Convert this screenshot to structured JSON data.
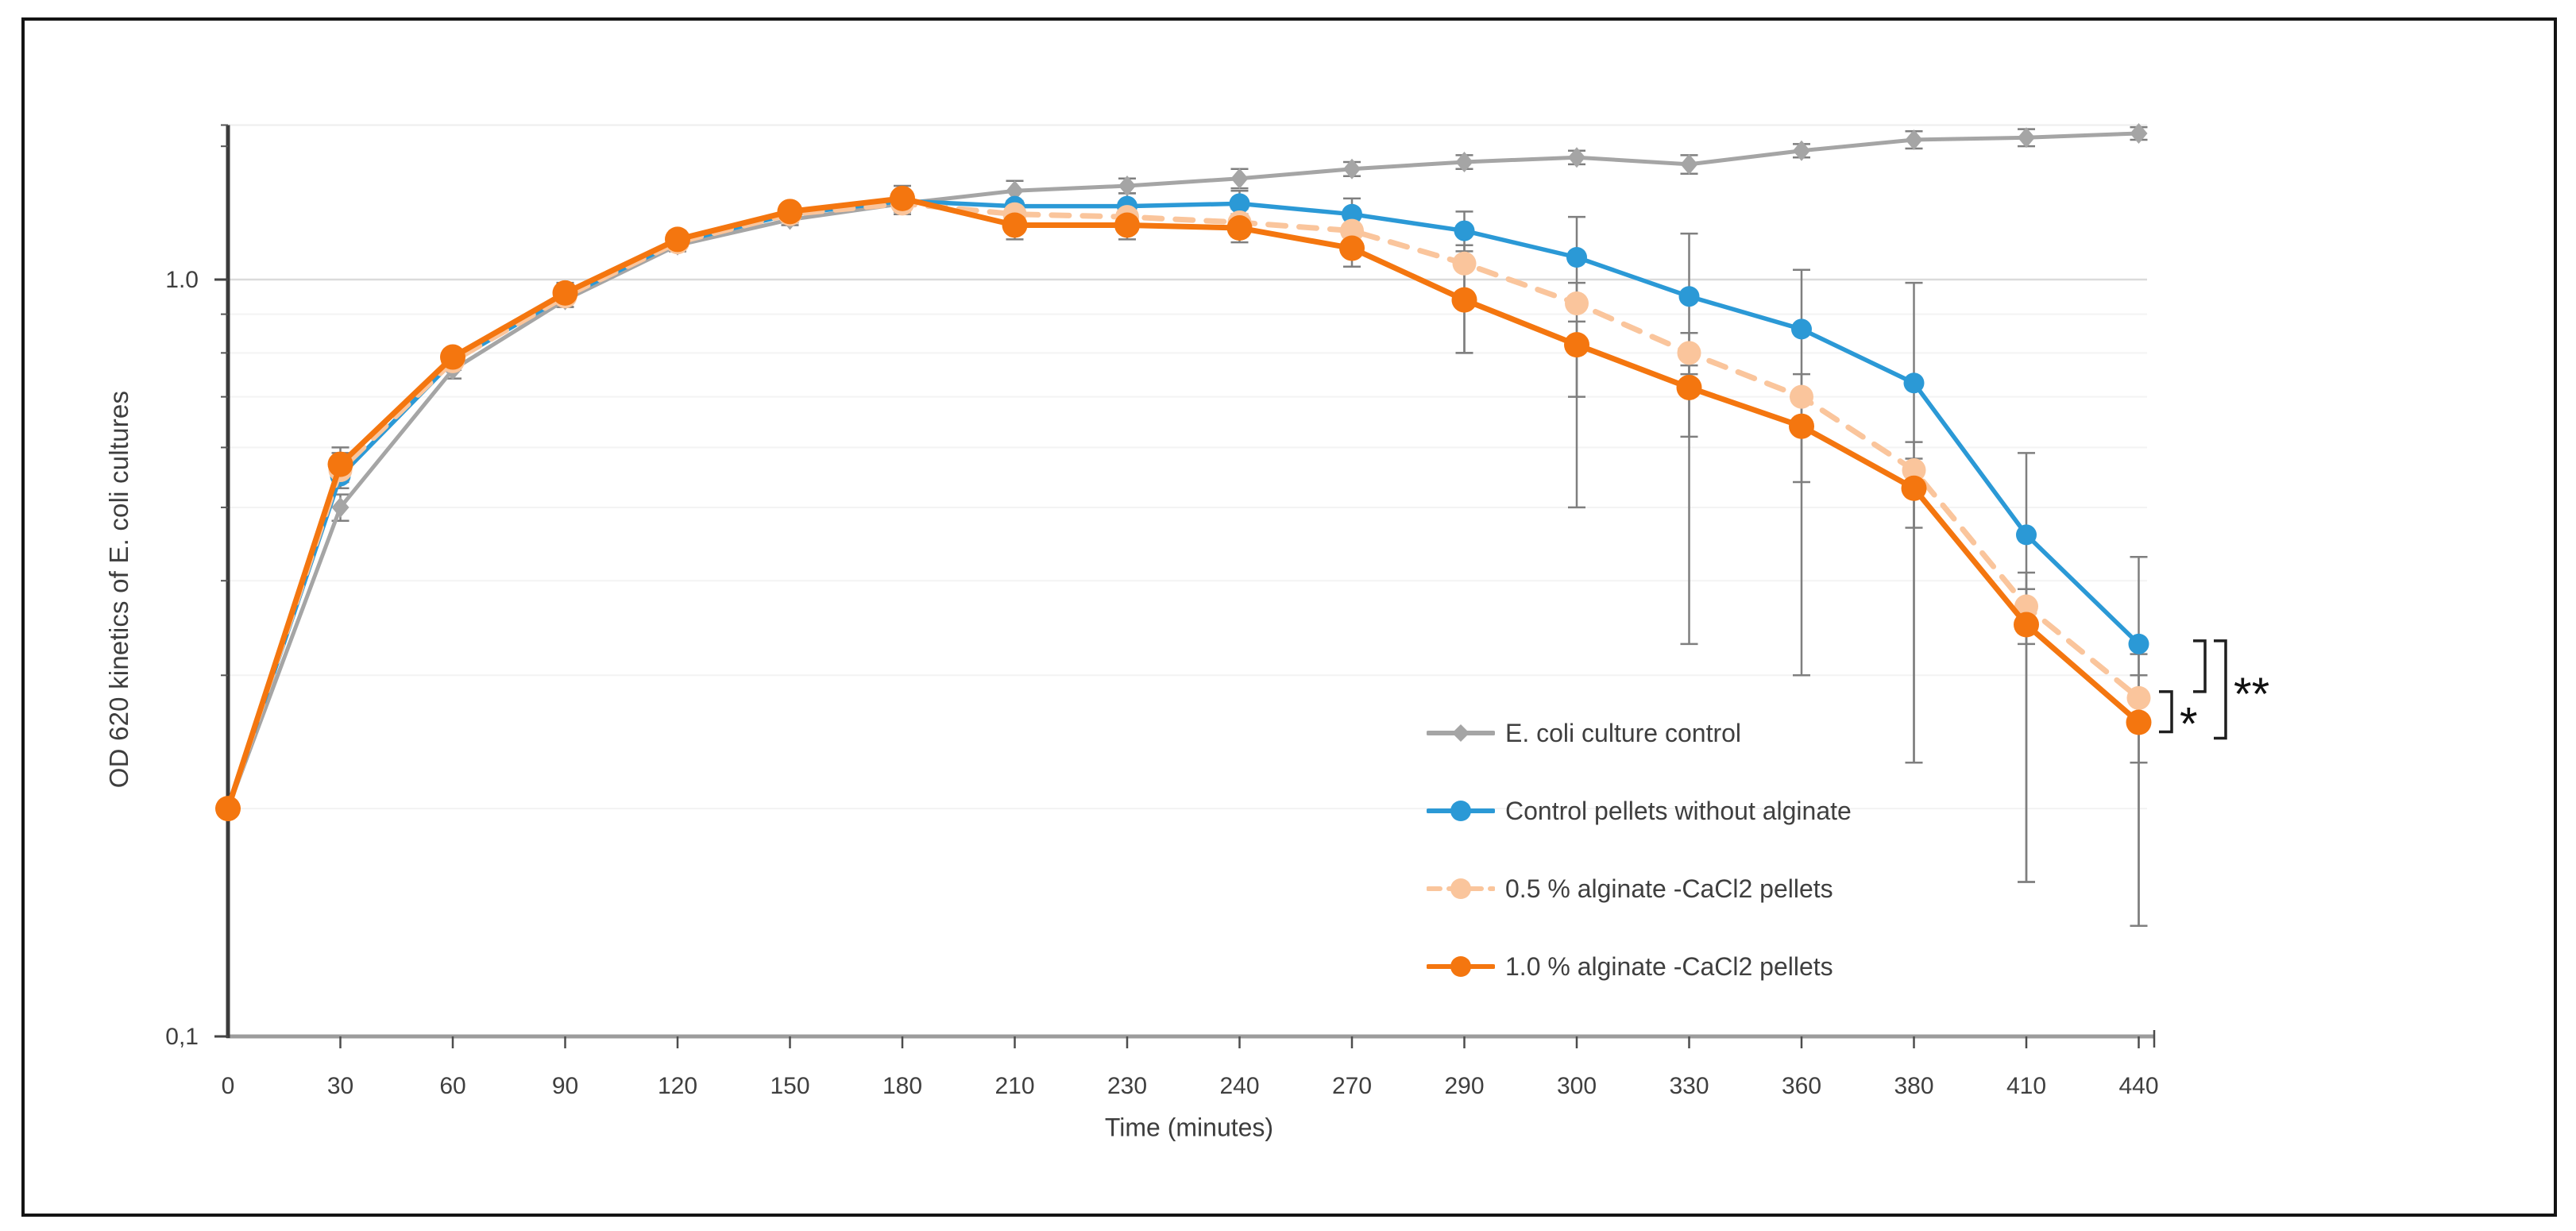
{
  "figure": {
    "border_color": "#141414",
    "background": "#ffffff"
  },
  "chart_data": {
    "type": "line",
    "title": "",
    "xlabel": "Time (minutes)",
    "ylabel": "OD 620 kinetics of E. coli cultures",
    "x_categories": [
      "0",
      "30",
      "60",
      "90",
      "120",
      "150",
      "180",
      "210",
      "230",
      "240",
      "270",
      "290",
      "300",
      "330",
      "360",
      "380",
      "410",
      "440"
    ],
    "y_scale": "log",
    "ylim": [
      0.1,
      1.6
    ],
    "y_ticks": [
      {
        "value": 1.0,
        "label": "1.0"
      },
      {
        "value": 0.1,
        "label": "0,1"
      }
    ],
    "y_minor_ticks": [
      0.2,
      0.3,
      0.4,
      0.5,
      0.6,
      0.7,
      0.8,
      0.9,
      1.5
    ],
    "grid": {
      "major_values": [
        1.0
      ],
      "minor_values": [
        0.2,
        0.3,
        0.4,
        0.5,
        0.6,
        0.7,
        0.8,
        0.9
      ],
      "top_value": 1.6,
      "major_color": "#dbdbdb",
      "minor_color": "#f3f3f3",
      "top_color": "#ededed"
    },
    "legend_position": "inside-right",
    "error_bar_color": "#7f7f7f",
    "axis_color": "#9c9c9c",
    "y_axis_color": "#3b3b3b",
    "tick_color": "#4d4d4d",
    "text_color": "#3f3f3f",
    "series": [
      {
        "name": "E. coli culture control",
        "color": "#a5a5a5",
        "marker": "diamond",
        "line_style": "solid",
        "values": [
          0.2,
          0.5,
          0.76,
          0.94,
          1.11,
          1.2,
          1.26,
          1.31,
          1.33,
          1.36,
          1.4,
          1.43,
          1.45,
          1.42,
          1.48,
          1.53,
          1.54,
          1.56
        ],
        "err_hi": [
          0.005,
          0.02,
          0.02,
          0.02,
          0.02,
          0.02,
          0.03,
          0.04,
          0.03,
          0.04,
          0.03,
          0.03,
          0.03,
          0.04,
          0.03,
          0.04,
          0.04,
          0.03
        ],
        "err_lo": [
          0.005,
          0.02,
          0.02,
          0.02,
          0.02,
          0.02,
          0.03,
          0.04,
          0.03,
          0.04,
          0.03,
          0.03,
          0.03,
          0.04,
          0.03,
          0.04,
          0.04,
          0.03
        ]
      },
      {
        "name": "Control pellets without alginate",
        "color": "#2b99d6",
        "marker": "circle",
        "line_style": "solid",
        "values": [
          0.2,
          0.55,
          0.78,
          0.95,
          1.12,
          1.22,
          1.27,
          1.25,
          1.25,
          1.26,
          1.22,
          1.16,
          1.07,
          0.95,
          0.86,
          0.73,
          0.46,
          0.33
        ],
        "err_hi": [
          0.005,
          0.02,
          0.02,
          0.02,
          0.03,
          0.03,
          0.04,
          0.06,
          0.05,
          0.05,
          0.06,
          0.07,
          0.14,
          0.2,
          0.17,
          0.26,
          0.13,
          0.1
        ],
        "err_lo": [
          0.005,
          0.02,
          0.02,
          0.02,
          0.03,
          0.03,
          0.04,
          0.06,
          0.05,
          0.05,
          0.06,
          0.07,
          0.14,
          0.2,
          0.17,
          0.26,
          0.13,
          0.1
        ]
      },
      {
        "name": "0.5 % alginate -CaCl2 pellets",
        "color": "#fac59c",
        "marker": "circle",
        "line_style": "dashed",
        "values": [
          0.2,
          0.56,
          0.78,
          0.95,
          1.12,
          1.22,
          1.26,
          1.22,
          1.21,
          1.19,
          1.16,
          1.05,
          0.93,
          0.8,
          0.7,
          0.56,
          0.37,
          0.28
        ],
        "err_hi": [
          0.005,
          0.03,
          0.02,
          0.03,
          0.03,
          0.03,
          0.04,
          0.05,
          0.05,
          0.05,
          0.05,
          0.06,
          0.06,
          0.05,
          0.05,
          0.05,
          0.04,
          0.04
        ],
        "err_lo": [
          0.005,
          0.03,
          0.02,
          0.03,
          0.03,
          0.03,
          0.04,
          0.05,
          0.05,
          0.05,
          0.06,
          0.25,
          0.43,
          0.47,
          0.4,
          0.33,
          0.21,
          0.14
        ]
      },
      {
        "name": "1.0 % alginate -CaCl2 pellets",
        "color": "#f4760f",
        "marker": "circle",
        "line_style": "solid",
        "values": [
          0.2,
          0.57,
          0.79,
          0.96,
          1.13,
          1.23,
          1.28,
          1.18,
          1.18,
          1.17,
          1.1,
          0.94,
          0.82,
          0.72,
          0.64,
          0.53,
          0.35,
          0.26
        ],
        "err_hi": [
          0.005,
          0.03,
          0.02,
          0.03,
          0.03,
          0.03,
          0.05,
          0.05,
          0.05,
          0.05,
          0.05,
          0.12,
          0.06,
          0.05,
          0.05,
          0.05,
          0.04,
          0.04
        ],
        "err_lo": [
          0.005,
          0.03,
          0.02,
          0.03,
          0.03,
          0.03,
          0.05,
          0.05,
          0.05,
          0.05,
          0.06,
          0.14,
          0.12,
          0.1,
          0.1,
          0.3,
          0.19,
          0.12
        ]
      }
    ],
    "annotations": [
      {
        "id": "sig-star",
        "label": "*",
        "between": [
          "0.5 % alginate -CaCl2 pellets",
          "1.0 % alginate -CaCl2 pellets"
        ]
      },
      {
        "id": "sig-double-star",
        "label": "**",
        "between": [
          "Control pellets without alginate",
          "1.0 % alginate -CaCl2 pellets"
        ]
      }
    ]
  }
}
